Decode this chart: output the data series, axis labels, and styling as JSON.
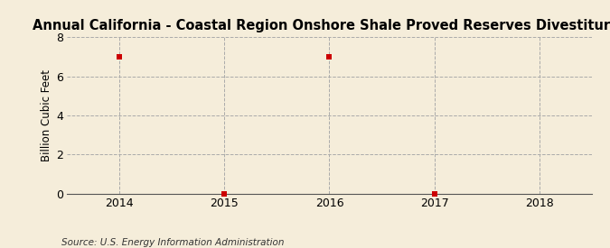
{
  "title": "Annual California - Coastal Region Onshore Shale Proved Reserves Divestitures",
  "ylabel": "Billion Cubic Feet",
  "source": "Source: U.S. Energy Information Administration",
  "x_values": [
    2014,
    2015,
    2016,
    2017
  ],
  "y_values": [
    6.99,
    0.0,
    6.99,
    0.0
  ],
  "xlim": [
    2013.5,
    2018.5
  ],
  "ylim": [
    0,
    8
  ],
  "yticks": [
    0,
    2,
    4,
    6,
    8
  ],
  "xticks": [
    2014,
    2015,
    2016,
    2017,
    2018
  ],
  "background_color": "#f5edda",
  "plot_bg_color": "#f5edda",
  "marker_color": "#cc0000",
  "marker": "s",
  "marker_size": 4,
  "grid_color": "#aaaaaa",
  "grid_style": "--",
  "title_fontsize": 10.5,
  "axis_label_fontsize": 8.5,
  "tick_fontsize": 9,
  "source_fontsize": 7.5
}
